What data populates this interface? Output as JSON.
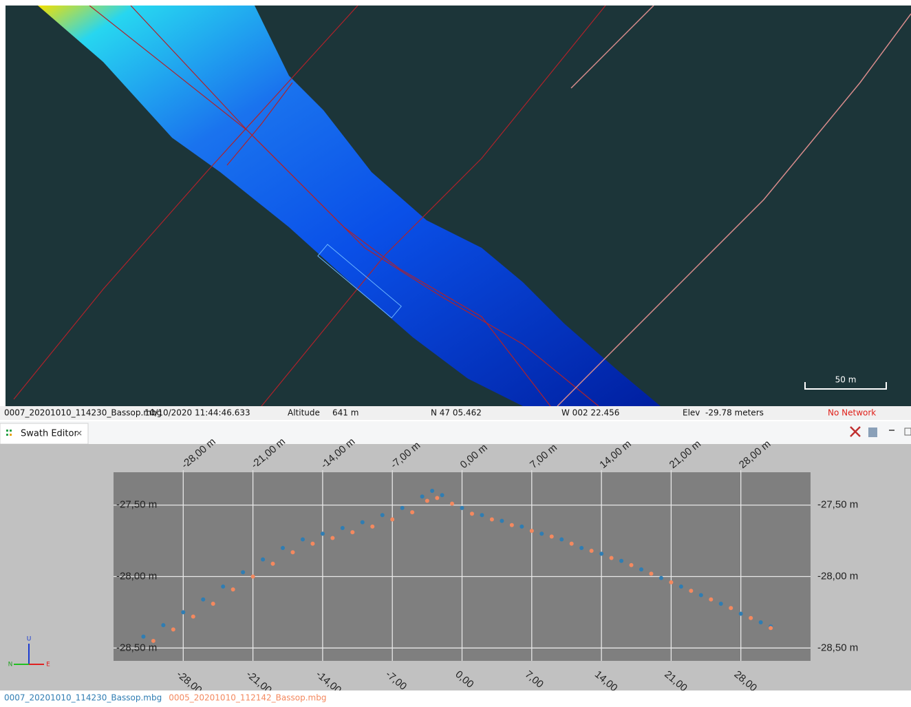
{
  "map": {
    "scale_label": "50 m"
  },
  "status_bar": {
    "file": "0007_20201010_114230_Bassop.mbg",
    "time": "10/10/2020 11:44:46.633",
    "altitude_label": "Altitude",
    "altitude": "641 m",
    "latitude": "N 47 05.462",
    "longitude": "W 002 22.456",
    "elevation": "Elev  -29.78 meters",
    "network": "No Network"
  },
  "tab": {
    "title": "Swath Editor"
  },
  "axis_triad": {
    "up": "U",
    "north": "N",
    "east": "E"
  },
  "chart_data": {
    "type": "scatter",
    "xlim": [
      -35,
      35
    ],
    "ylim": [
      -28.59,
      -27.27
    ],
    "grid": true,
    "xticks": [
      {
        "value": -28,
        "label": "-28,00"
      },
      {
        "value": -21,
        "label": "-21,00"
      },
      {
        "value": -14,
        "label": "-14,00"
      },
      {
        "value": -7,
        "label": "-7,00"
      },
      {
        "value": 0,
        "label": "0,00"
      },
      {
        "value": 7,
        "label": "7,00"
      },
      {
        "value": 14,
        "label": "14,00"
      },
      {
        "value": 21,
        "label": "21,00"
      },
      {
        "value": 28,
        "label": "28,00"
      }
    ],
    "x2ticks": [
      {
        "value": -28,
        "label": "-28,00 m"
      },
      {
        "value": -21,
        "label": "-21,00 m"
      },
      {
        "value": -14,
        "label": "-14,00 m"
      },
      {
        "value": -7,
        "label": "-7,00 m"
      },
      {
        "value": 0,
        "label": "0,00 m"
      },
      {
        "value": 7,
        "label": "7,00 m"
      },
      {
        "value": 14,
        "label": "14,00 m"
      },
      {
        "value": 21,
        "label": "21,00 m"
      },
      {
        "value": 28,
        "label": "28,00 m"
      }
    ],
    "yticks": [
      {
        "value": -27.5,
        "label": "-27,50 m"
      },
      {
        "value": -28,
        "label": "-28,00 m"
      },
      {
        "value": -28.5,
        "label": "-28,50 m"
      }
    ],
    "series": [
      {
        "name": "0007_20201010_114230_Bassop.mbg",
        "color": "#2f7db3",
        "x": [
          -32,
          -30,
          -28,
          -26,
          -24,
          -22,
          -20,
          -18,
          -16,
          -14,
          -12,
          -10,
          -8,
          -6,
          -4,
          -3,
          -2,
          0,
          2,
          4,
          6,
          8,
          10,
          12,
          14,
          16,
          18,
          20,
          22,
          24,
          26,
          28,
          30,
          31
        ],
        "values": [
          -28.42,
          -28.34,
          -28.25,
          -28.16,
          -28.07,
          -27.97,
          -27.88,
          -27.8,
          -27.74,
          -27.7,
          -27.66,
          -27.62,
          -27.57,
          -27.52,
          -27.44,
          -27.4,
          -27.43,
          -27.52,
          -27.57,
          -27.61,
          -27.65,
          -27.7,
          -27.74,
          -27.8,
          -27.84,
          -27.89,
          -27.95,
          -28.01,
          -28.07,
          -28.13,
          -28.19,
          -28.26,
          -28.32,
          -28.35
        ]
      },
      {
        "name": "0005_20201010_112142_Bassop.mbg",
        "color": "#f4895f",
        "x": [
          -31,
          -29,
          -27,
          -25,
          -23,
          -21,
          -19,
          -17,
          -15,
          -13,
          -11,
          -9,
          -7,
          -5,
          -3.5,
          -2.5,
          -1,
          1,
          3,
          5,
          7,
          9,
          11,
          13,
          15,
          17,
          19,
          21,
          23,
          25,
          27,
          29,
          31
        ],
        "values": [
          -28.45,
          -28.37,
          -28.28,
          -28.19,
          -28.09,
          -28.0,
          -27.91,
          -27.83,
          -27.77,
          -27.73,
          -27.69,
          -27.65,
          -27.6,
          -27.55,
          -27.47,
          -27.45,
          -27.49,
          -27.56,
          -27.6,
          -27.64,
          -27.68,
          -27.72,
          -27.77,
          -27.82,
          -27.87,
          -27.92,
          -27.98,
          -28.04,
          -28.1,
          -28.16,
          -28.22,
          -28.29,
          -28.36
        ]
      }
    ]
  }
}
